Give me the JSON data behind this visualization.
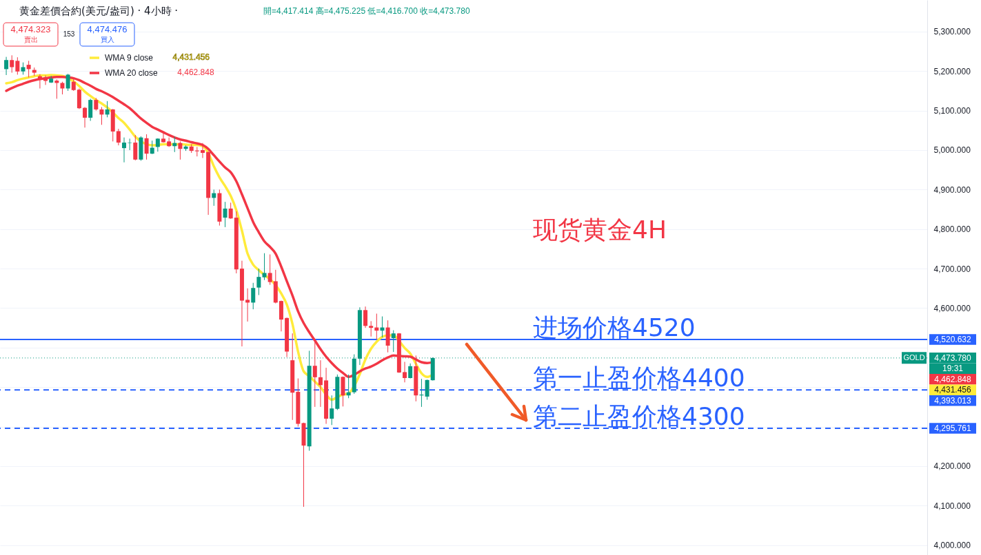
{
  "chart_data": {
    "type": "candlestick",
    "title": "黄金差價合約(美元/盎司) · 4小時 ·",
    "subtitle": "開=4,417.414 高=4,475.225 低=4,416.700 收=4,473.780",
    "categories": [
      null,
      null,
      null,
      null,
      null,
      null,
      null,
      null,
      null,
      null,
      null,
      null,
      null,
      null,
      null,
      null,
      null,
      null,
      null,
      null,
      null,
      null,
      null,
      null,
      null,
      null,
      null,
      null,
      null,
      null,
      null,
      null,
      null,
      null,
      null,
      null,
      null,
      null,
      null,
      null,
      null,
      null,
      null,
      null,
      null,
      null,
      null,
      null,
      null,
      null,
      null,
      null,
      null,
      null,
      null,
      null,
      null,
      null,
      null,
      null,
      null,
      null,
      null,
      null,
      null,
      null,
      null,
      null,
      null,
      null,
      null,
      null,
      null,
      null,
      null,
      null,
      null,
      null,
      null,
      null,
      null,
      null,
      null,
      null,
      null,
      null,
      null,
      null,
      null,
      null,
      null,
      null,
      null,
      null,
      null,
      null,
      null,
      null,
      null,
      null,
      null,
      null,
      null,
      null,
      null,
      null,
      null,
      null,
      null,
      null,
      null,
      null,
      null,
      null,
      null,
      null,
      null,
      null,
      null,
      null,
      null,
      null,
      null,
      null,
      null,
      null,
      null,
      null,
      null,
      null,
      null,
      null,
      null,
      null,
      null,
      null,
      null,
      null,
      null,
      null,
      null,
      null,
      null,
      null,
      null,
      null,
      null,
      null,
      null,
      null,
      null,
      null,
      null,
      null,
      null,
      null,
      null,
      null,
      null,
      null,
      null,
      null,
      null,
      null
    ],
    "ohlc": [
      [
        5205,
        5236,
        5190,
        5228
      ],
      [
        5228,
        5240,
        5196,
        5210
      ],
      [
        5226,
        5235,
        5191,
        5199
      ],
      [
        5199,
        5222,
        5191,
        5210
      ],
      [
        5216,
        5226,
        5184,
        5205
      ],
      [
        5203,
        5209,
        5188,
        5196
      ],
      [
        5187,
        5192,
        5156,
        5180
      ],
      [
        5181,
        5189,
        5165,
        5175
      ],
      [
        5171,
        5188,
        5170,
        5181
      ],
      [
        5176,
        5179,
        5130,
        5170
      ],
      [
        5170,
        5173,
        5141,
        5156
      ],
      [
        5156,
        5193,
        5150,
        5191
      ],
      [
        5173,
        5182,
        5150,
        5152
      ],
      [
        5153,
        5156,
        5104,
        5106
      ],
      [
        5107,
        5109,
        5057,
        5082
      ],
      [
        5082,
        5130,
        5074,
        5127
      ],
      [
        5127,
        5132,
        5100,
        5103
      ],
      [
        5103,
        5109,
        5064,
        5090
      ],
      [
        5090,
        5124,
        5083,
        5103
      ],
      [
        5103,
        5104,
        5022,
        5047
      ],
      [
        5048,
        5054,
        5012,
        5019
      ],
      [
        5005,
        5032,
        4969,
        5019
      ],
      [
        5018,
        5029,
        5000,
        5019
      ],
      [
        5019,
        5038,
        4974,
        4976
      ],
      [
        4976,
        5035,
        4973,
        5032
      ],
      [
        5030,
        5040,
        4976,
        4991
      ],
      [
        4991,
        5024,
        4990,
        5006
      ],
      [
        5008,
        5030,
        4996,
        5029
      ],
      [
        5029,
        5045,
        5019,
        5020
      ],
      [
        5022,
        5032,
        5008,
        5010
      ],
      [
        5010,
        5034,
        4995,
        5018
      ],
      [
        5018,
        5022,
        4976,
        5003
      ],
      [
        5003,
        5012,
        4998,
        5009
      ],
      [
        5009,
        5015,
        4993,
        4998
      ],
      [
        4999,
        5008,
        4984,
        4997
      ],
      [
        5000,
        5018,
        4980,
        4993
      ],
      [
        4995,
        4997,
        4836,
        4879
      ],
      [
        4879,
        4900,
        4859,
        4891
      ],
      [
        4891,
        4900,
        4809,
        4819
      ],
      [
        4829,
        4869,
        4805,
        4852
      ],
      [
        4852,
        4867,
        4826,
        4827
      ],
      [
        4829,
        4845,
        4688,
        4698
      ],
      [
        4700,
        4720,
        4503,
        4619
      ],
      [
        4621,
        4650,
        4566,
        4614
      ],
      [
        4614,
        4664,
        4597,
        4651
      ],
      [
        4652,
        4700,
        4633,
        4679
      ],
      [
        4678,
        4739,
        4671,
        4689
      ],
      [
        4689,
        4736,
        4659,
        4666
      ],
      [
        4668,
        4697,
        4612,
        4614
      ],
      [
        4618,
        4619,
        4541,
        4571
      ],
      [
        4575,
        4576,
        4476,
        4490
      ],
      [
        4468,
        4536,
        4317,
        4386
      ],
      [
        4388,
        4422,
        4300,
        4307
      ],
      [
        4309,
        4310,
        4097,
        4252
      ],
      [
        4250,
        4492,
        4239,
        4454
      ],
      [
        4454,
        4514,
        4350,
        4425
      ],
      [
        4425,
        4468,
        4350,
        4405
      ],
      [
        4417,
        4449,
        4307,
        4320
      ],
      [
        4320,
        4379,
        4304,
        4346
      ],
      [
        4345,
        4432,
        4342,
        4426
      ],
      [
        4426,
        4427,
        4351,
        4379
      ],
      [
        4379,
        4432,
        4372,
        4387
      ],
      [
        4387,
        4483,
        4383,
        4472
      ],
      [
        4472,
        4602,
        4456,
        4595
      ],
      [
        4595,
        4604,
        4550,
        4555
      ],
      [
        4555,
        4567,
        4528,
        4550
      ],
      [
        4551,
        4586,
        4521,
        4543
      ],
      [
        4543,
        4579,
        4526,
        4551
      ],
      [
        4551,
        4569,
        4488,
        4505
      ],
      [
        4524,
        4544,
        4489,
        4536
      ],
      [
        4536,
        4537,
        4436,
        4437
      ],
      [
        4438,
        4464,
        4412,
        4423
      ],
      [
        4423,
        4460,
        4422,
        4453
      ],
      [
        4453,
        4480,
        4364,
        4379
      ],
      [
        4379,
        4421,
        4350,
        4381
      ],
      [
        4376,
        4419,
        4368,
        4418
      ],
      [
        4417.414,
        4475.225,
        4416.7,
        4473.78
      ],
      null,
      null,
      null,
      null,
      null,
      null,
      null,
      null,
      null,
      null,
      null,
      null,
      null,
      null,
      null,
      null,
      null,
      null,
      null,
      null,
      null,
      null,
      null,
      null,
      null,
      null,
      null,
      null,
      null,
      null,
      null,
      null,
      null,
      null,
      null,
      null,
      null,
      null,
      null,
      null,
      null,
      null,
      null,
      null,
      null,
      null,
      null,
      null,
      null,
      null,
      null,
      null,
      null,
      null,
      null,
      null,
      null,
      null,
      null,
      null,
      null,
      null,
      null,
      null,
      null,
      null,
      null,
      null,
      null,
      null,
      null,
      null,
      null,
      null,
      null,
      null,
      null,
      null,
      null,
      null,
      null,
      null,
      null,
      null,
      null,
      null,
      null
    ],
    "colors": [
      "#089981",
      "#f23645",
      "#f23645",
      "#089981",
      "#f23645",
      "#f23645",
      "#f23645",
      "#f23645",
      "#089981",
      "#f23645",
      "#f23645",
      "#089981",
      "#f23645",
      "#f23645",
      "#f23645",
      "#089981",
      "#f23645",
      "#f23645",
      "#089981",
      "#f23645",
      "#f23645",
      "#089981",
      "#089981",
      "#f23645",
      "#089981",
      "#f23645",
      "#089981",
      "#089981",
      "#f23645",
      "#f23645",
      "#089981",
      "#f23645",
      "#089981",
      "#f23645",
      "#f23645",
      "#f23645",
      "#f23645",
      "#089981",
      "#f23645",
      "#089981",
      "#f23645",
      "#f23645",
      "#f23645",
      "#f23645",
      "#089981",
      "#089981",
      "#089981",
      "#f23645",
      "#f23645",
      "#f23645",
      "#f23645",
      "#f23645",
      "#f23645",
      "#f23645",
      "#089981",
      "#f23645",
      "#f23645",
      "#f23645",
      "#089981",
      "#089981",
      "#f23645",
      "#089981",
      "#089981",
      "#089981",
      "#f23645",
      "#f23645",
      "#f23645",
      "#089981",
      "#f23645",
      "#089981",
      "#f23645",
      "#f23645",
      "#089981",
      "#f23645",
      "#089981",
      "#089981",
      "#089981",
      null,
      null,
      null,
      null,
      null,
      null,
      null,
      null,
      null,
      null,
      null,
      null,
      null,
      null,
      null,
      null,
      null,
      null,
      null,
      null,
      null,
      null,
      null,
      null,
      null,
      null,
      null,
      null,
      null,
      null,
      null,
      null,
      null,
      null,
      null,
      null,
      null,
      null,
      null,
      null,
      null,
      null,
      null,
      null,
      null,
      null,
      null,
      null,
      null,
      null,
      null,
      null,
      null,
      null,
      null,
      null,
      null,
      null,
      null,
      null,
      null,
      null,
      null,
      null,
      null,
      null,
      null,
      null,
      null,
      null,
      null,
      null,
      null,
      null,
      null,
      null,
      null,
      null,
      null,
      null,
      null,
      null,
      null,
      null,
      null,
      null,
      null
    ],
    "series": [
      {
        "name": "WMA 9 close",
        "type": "line",
        "color": "#ffeb3b",
        "values": [
          5169,
          5172,
          5177,
          5181,
          5184,
          5187,
          5189,
          5189,
          5190,
          5189,
          5188,
          5182,
          5174,
          5162,
          5148,
          5137,
          5127,
          5118,
          5108,
          5095,
          5081,
          5069,
          5052,
          5034,
          5022,
          5015,
          5012,
          5013,
          5015,
          5015,
          5015,
          5015,
          5014,
          5013,
          5013,
          5010,
          4992,
          4959,
          4931,
          4909,
          4884,
          4848,
          4796,
          4738,
          4710,
          4696,
          4684,
          4673,
          4658,
          4637,
          4609,
          4560,
          4490,
          4440,
          4428,
          4414,
          4400,
          4381,
          4368,
          4375,
          4381,
          4384,
          4403,
          4433,
          4470,
          4497,
          4515,
          4527,
          4531,
          4531,
          4517,
          4499,
          4485,
          4459,
          4435,
          4426,
          4431.456,
          null,
          null,
          null,
          null,
          null,
          null,
          null,
          null,
          null,
          null,
          null,
          null,
          null,
          null,
          null,
          null,
          null,
          null,
          null,
          null,
          null,
          null,
          null,
          null,
          null,
          null,
          null,
          null,
          null,
          null,
          null,
          null,
          null,
          null,
          null,
          null,
          null,
          null,
          null,
          null,
          null,
          null,
          null,
          null,
          null,
          null,
          null,
          null,
          null,
          null,
          null,
          null,
          null,
          null,
          null,
          null,
          null,
          null,
          null,
          null,
          null,
          null,
          null,
          null,
          null,
          null,
          null,
          null,
          null,
          null,
          null,
          null,
          null,
          null,
          null,
          null,
          null,
          null,
          null,
          null,
          null,
          null,
          null,
          null,
          null,
          null,
          null
        ]
      },
      {
        "name": "WMA 20 close",
        "type": "line",
        "color": "#f23645",
        "values": [
          5150,
          5157,
          5163,
          5168,
          5173,
          5177,
          5180,
          5182,
          5184,
          5185,
          5185,
          5184,
          5182,
          5177,
          5170,
          5163,
          5155,
          5149,
          5142,
          5134,
          5125,
          5116,
          5106,
          5093,
          5080,
          5069,
          5059,
          5052,
          5045,
          5038,
          5032,
          5027,
          5024,
          5020,
          5017,
          5013,
          5003,
          4987,
          4971,
          4956,
          4944,
          4921,
          4888,
          4853,
          4818,
          4792,
          4769,
          4755,
          4738,
          4705,
          4668,
          4632,
          4592,
          4562,
          4539,
          4518,
          4496,
          4477,
          4461,
          4447,
          4436,
          4426,
          4431,
          4440,
          4447,
          4452,
          4459,
          4468,
          4475,
          4480,
          4479,
          4478,
          4477,
          4470,
          4463,
          4461,
          4462.848,
          null,
          null,
          null,
          null,
          null,
          null,
          null,
          null,
          null,
          null,
          null,
          null,
          null,
          null,
          null,
          null,
          null,
          null,
          null,
          null,
          null,
          null,
          null,
          null,
          null,
          null,
          null,
          null,
          null,
          null,
          null,
          null,
          null,
          null,
          null,
          null,
          null,
          null,
          null,
          null,
          null,
          null,
          null,
          null,
          null,
          null,
          null,
          null,
          null,
          null,
          null,
          null,
          null,
          null,
          null,
          null,
          null,
          null,
          null,
          null,
          null,
          null,
          null,
          null,
          null,
          null,
          null,
          null,
          null,
          null,
          null,
          null,
          null,
          null,
          null,
          null,
          null,
          null,
          null,
          null,
          null,
          null,
          null,
          null,
          null,
          null,
          null
        ]
      }
    ],
    "ylim": [
      3975,
      5380
    ],
    "yticks": [
      {
        "value": 4000,
        "label": "4,000.000"
      },
      {
        "value": 4100,
        "label": "4,100.000"
      },
      {
        "value": 4200,
        "label": "4,200.000"
      },
      {
        "value": 4300,
        "label": null
      },
      {
        "value": 4400,
        "label": null
      },
      {
        "value": 4500,
        "label": null
      },
      {
        "value": 4600,
        "label": "4,600.000"
      },
      {
        "value": 4700,
        "label": "4,700.000"
      },
      {
        "value": 4800,
        "label": "4,800.000"
      },
      {
        "value": 4900,
        "label": "4,900.000"
      },
      {
        "value": 5000,
        "label": "5,000.000"
      },
      {
        "value": 5100,
        "label": "5,100.000"
      },
      {
        "value": 5200,
        "label": "5,200.000"
      },
      {
        "value": 5300,
        "label": "5,300.000"
      }
    ],
    "ref_lines": [
      {
        "axis": "y",
        "value": 4520.632,
        "label": "4,520.632",
        "color": "#2962ff",
        "line_style": "solid"
      },
      {
        "axis": "y",
        "value": 4473.78,
        "label": "4,473.780",
        "color": "#089981",
        "line_style": "dotted"
      },
      {
        "axis": "y",
        "value": 4393.013,
        "label": "4,393.013",
        "color": "#2962ff",
        "line_style": "dashed"
      },
      {
        "axis": "y",
        "value": 4295.761,
        "label": "4,295.761",
        "color": "#2962ff",
        "line_style": "dashed"
      }
    ],
    "annotations": [
      "现货黄金4H",
      {
        "text": "进场价格4520",
        "y": 4520.632
      },
      {
        "text": "第一止盈价格4400",
        "y": 4393.013
      },
      {
        "text": "第二止盈价格4300",
        "y": 4295.761
      },
      "4,474.323",
      "賣出",
      "153",
      "4,474.476",
      "買入",
      {
        "text": "GOLD",
        "y": 4473.78
      },
      "19:31",
      "4,431.456",
      "4,462.848",
      "4,462.848",
      "4,431.456"
    ],
    "grid": "y",
    "legend": "top left"
  }
}
